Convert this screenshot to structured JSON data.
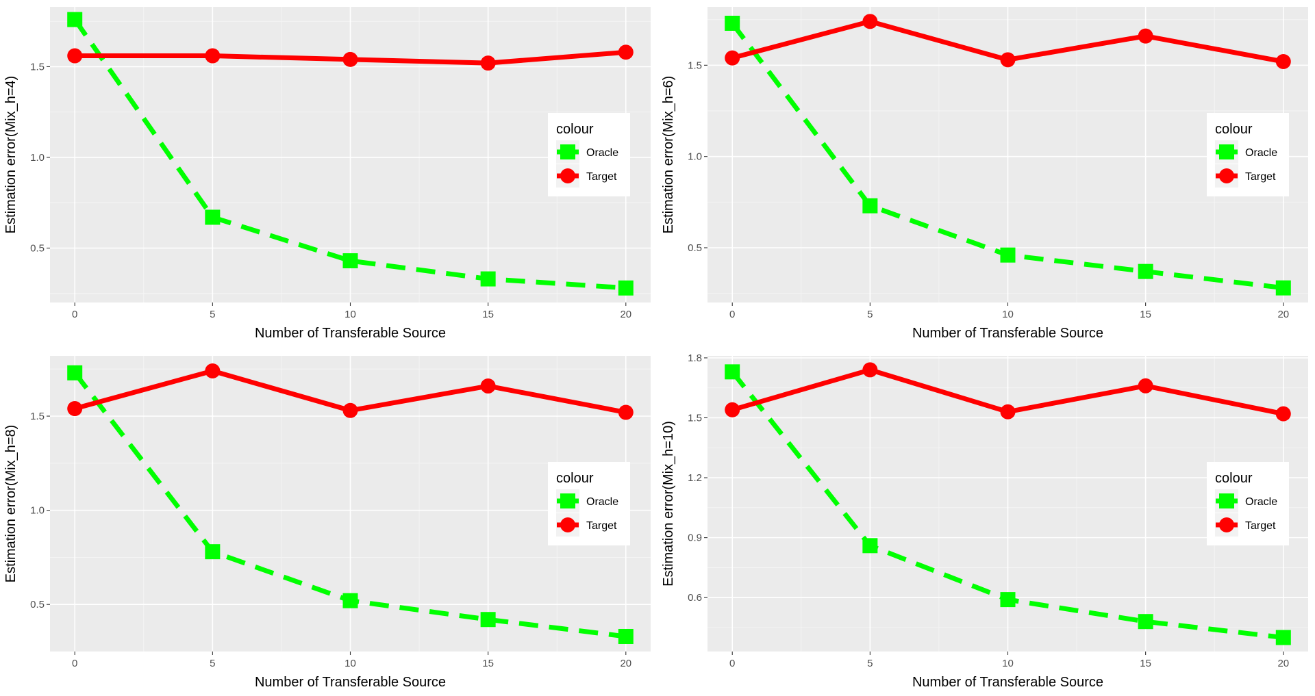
{
  "colors": {
    "panel_background": "#ebebeb",
    "grid_major": "#ffffff",
    "grid_minor": "#f5f5f5",
    "oracle": "#00ff00",
    "target": "#ff0000",
    "tick_text": "#4d4d4d",
    "legend_background": "#ffffff",
    "legend_key_background": "#f2f2f2"
  },
  "legend": {
    "title": "colour",
    "entries": [
      {
        "label": "Oracle",
        "color": "#00ff00",
        "shape": "square",
        "linetype": "dashed"
      },
      {
        "label": "Target",
        "color": "#ff0000",
        "shape": "circle",
        "linetype": "solid"
      }
    ],
    "placement": "right-center inside"
  },
  "chart_data": [
    {
      "type": "line",
      "title": "",
      "xlabel": "Number of Transferable Source",
      "ylabel": "Estimation error(Mix_h=4)",
      "x": [
        0,
        5,
        10,
        15,
        20
      ],
      "xlim": [
        -0.9,
        20.9
      ],
      "xticks": [
        0,
        5,
        10,
        15,
        20
      ],
      "xtick_labels": [
        "0",
        "5",
        "10",
        "15",
        "20"
      ],
      "ylim": [
        0.2,
        1.83
      ],
      "yticks": [
        0.5,
        1.0,
        1.5
      ],
      "ytick_labels": [
        "0.5",
        "1.0",
        "1.5"
      ],
      "grid": true,
      "legend_position": "right-center",
      "series": [
        {
          "name": "Oracle",
          "values": [
            1.76,
            0.67,
            0.43,
            0.33,
            0.28
          ]
        },
        {
          "name": "Target",
          "values": [
            1.56,
            1.56,
            1.54,
            1.52,
            1.58
          ]
        }
      ]
    },
    {
      "type": "line",
      "title": "",
      "xlabel": "Number of Transferable Source",
      "ylabel": "Estimation error(Mix_h=6)",
      "x": [
        0,
        5,
        10,
        15,
        20
      ],
      "xlim": [
        -0.9,
        20.9
      ],
      "xticks": [
        0,
        5,
        10,
        15,
        20
      ],
      "xtick_labels": [
        "0",
        "5",
        "10",
        "15",
        "20"
      ],
      "ylim": [
        0.2,
        1.82
      ],
      "yticks": [
        0.5,
        1.0,
        1.5
      ],
      "ytick_labels": [
        "0.5",
        "1.0",
        "1.5"
      ],
      "grid": true,
      "legend_position": "right-center",
      "series": [
        {
          "name": "Oracle",
          "values": [
            1.73,
            0.73,
            0.46,
            0.37,
            0.28
          ]
        },
        {
          "name": "Target",
          "values": [
            1.54,
            1.74,
            1.53,
            1.66,
            1.52
          ]
        }
      ]
    },
    {
      "type": "line",
      "title": "",
      "xlabel": "Number of Transferable Source",
      "ylabel": "Estimation error(Mix_h=8)",
      "x": [
        0,
        5,
        10,
        15,
        20
      ],
      "xlim": [
        -0.9,
        20.9
      ],
      "xticks": [
        0,
        5,
        10,
        15,
        20
      ],
      "xtick_labels": [
        "0",
        "5",
        "10",
        "15",
        "20"
      ],
      "ylim": [
        0.25,
        1.82
      ],
      "yticks": [
        0.5,
        1.0,
        1.5
      ],
      "ytick_labels": [
        "0.5",
        "1.0",
        "1.5"
      ],
      "grid": true,
      "legend_position": "right-center",
      "series": [
        {
          "name": "Oracle",
          "values": [
            1.73,
            0.78,
            0.52,
            0.42,
            0.33
          ]
        },
        {
          "name": "Target",
          "values": [
            1.54,
            1.74,
            1.53,
            1.66,
            1.52
          ]
        }
      ]
    },
    {
      "type": "line",
      "title": "",
      "xlabel": "Number of Transferable Source",
      "ylabel": "Estimation error(Mix_h=10)",
      "x": [
        0,
        5,
        10,
        15,
        20
      ],
      "xlim": [
        -0.9,
        20.9
      ],
      "xticks": [
        0,
        5,
        10,
        15,
        20
      ],
      "xtick_labels": [
        "0",
        "5",
        "10",
        "15",
        "20"
      ],
      "ylim": [
        0.33,
        1.81
      ],
      "yticks": [
        0.6,
        0.9,
        1.2,
        1.5,
        1.8
      ],
      "ytick_labels": [
        "0.6",
        "0.9",
        "1.2",
        "1.5",
        "1.8"
      ],
      "grid": true,
      "legend_position": "right-center",
      "series": [
        {
          "name": "Oracle",
          "values": [
            1.73,
            0.86,
            0.59,
            0.48,
            0.4
          ]
        },
        {
          "name": "Target",
          "values": [
            1.54,
            1.74,
            1.53,
            1.66,
            1.52
          ]
        }
      ]
    }
  ]
}
